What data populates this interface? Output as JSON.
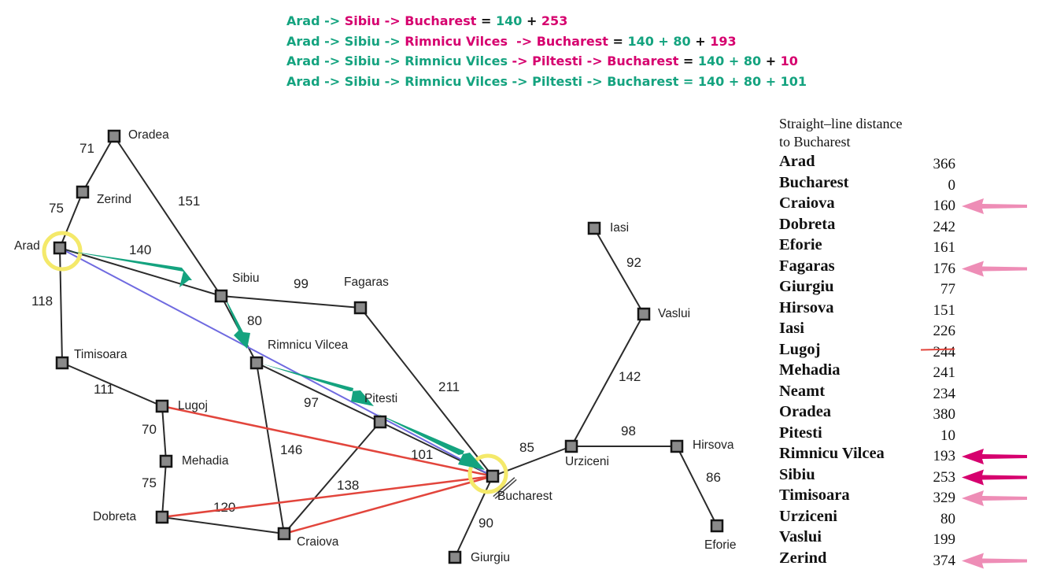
{
  "colors": {
    "teal": "#14a37f",
    "magenta": "#d6006e",
    "pink": "#ee8db6",
    "red": "#e2453c",
    "blue": "#6f6ae0",
    "yellow": "#f4e96a",
    "edge": "#2b2b2b"
  },
  "path_lines": [
    [
      {
        "t": "Arad -> ",
        "c": "teal"
      },
      {
        "t": "Sibiu -> Bucharest",
        "c": "magenta"
      },
      {
        "t": " = ",
        "c": "dark"
      },
      {
        "t": "140",
        "c": "teal"
      },
      {
        "t": " + ",
        "c": "dark"
      },
      {
        "t": "253",
        "c": "magenta"
      }
    ],
    [
      {
        "t": "Arad -> Sibiu -> ",
        "c": "teal"
      },
      {
        "t": "Rimnicu Vilces  -> Bucharest",
        "c": "magenta"
      },
      {
        "t": " = ",
        "c": "dark"
      },
      {
        "t": "140 + 80",
        "c": "teal"
      },
      {
        "t": " + ",
        "c": "dark"
      },
      {
        "t": "193",
        "c": "magenta"
      }
    ],
    [
      {
        "t": "Arad -> Sibiu -> Rimnicu Vilces ",
        "c": "teal"
      },
      {
        "t": "-> Piltesti -> Bucharest",
        "c": "magenta"
      },
      {
        "t": " = ",
        "c": "dark"
      },
      {
        "t": "140 + 80",
        "c": "teal"
      },
      {
        "t": " + ",
        "c": "dark"
      },
      {
        "t": "10",
        "c": "magenta"
      }
    ],
    [
      {
        "t": "Arad -> Sibiu -> Rimnicu Vilces -> Piltesti -> Bucharest = 140 + 80 + 101",
        "c": "teal"
      }
    ]
  ],
  "cities": [
    {
      "id": "oradea",
      "name": "Oradea"
    },
    {
      "id": "zerind",
      "name": "Zerind"
    },
    {
      "id": "arad",
      "name": "Arad"
    },
    {
      "id": "timisoara",
      "name": "Timisoara"
    },
    {
      "id": "lugoj",
      "name": "Lugoj"
    },
    {
      "id": "mehadia",
      "name": "Mehadia"
    },
    {
      "id": "dobreta",
      "name": "Dobreta"
    },
    {
      "id": "craiova",
      "name": "Craiova"
    },
    {
      "id": "sibiu",
      "name": "Sibiu"
    },
    {
      "id": "rimnicu",
      "name": "Rimnicu Vilcea"
    },
    {
      "id": "fagaras",
      "name": "Fagaras"
    },
    {
      "id": "pitesti",
      "name": "Pitesti"
    },
    {
      "id": "bucharest",
      "name": "Bucharest"
    },
    {
      "id": "giurgiu",
      "name": "Giurgiu"
    },
    {
      "id": "urziceni",
      "name": "Urziceni"
    },
    {
      "id": "hirsova",
      "name": "Hirsova"
    },
    {
      "id": "eforie",
      "name": "Eforie"
    },
    {
      "id": "vaslui",
      "name": "Vaslui"
    },
    {
      "id": "iasi",
      "name": "Iasi"
    }
  ],
  "roads": [
    {
      "from": "oradea",
      "to": "zerind",
      "km": "71"
    },
    {
      "from": "zerind",
      "to": "arad",
      "km": "75"
    },
    {
      "from": "oradea",
      "to": "sibiu",
      "km": "151"
    },
    {
      "from": "arad",
      "to": "sibiu",
      "km": "140"
    },
    {
      "from": "arad",
      "to": "timisoara",
      "km": "118"
    },
    {
      "from": "timisoara",
      "to": "lugoj",
      "km": "111"
    },
    {
      "from": "lugoj",
      "to": "mehadia",
      "km": "70"
    },
    {
      "from": "mehadia",
      "to": "dobreta",
      "km": "75"
    },
    {
      "from": "dobreta",
      "to": "craiova",
      "km": "120"
    },
    {
      "from": "sibiu",
      "to": "fagaras",
      "km": "99"
    },
    {
      "from": "sibiu",
      "to": "rimnicu",
      "km": "80"
    },
    {
      "from": "rimnicu",
      "to": "pitesti",
      "km": "97"
    },
    {
      "from": "rimnicu",
      "to": "craiova",
      "km": "146"
    },
    {
      "from": "craiova",
      "to": "pitesti",
      "km": "138"
    },
    {
      "from": "fagaras",
      "to": "bucharest",
      "km": "211"
    },
    {
      "from": "pitesti",
      "to": "bucharest",
      "km": "101"
    },
    {
      "from": "bucharest",
      "to": "giurgiu",
      "km": "90"
    },
    {
      "from": "bucharest",
      "to": "urziceni",
      "km": "85"
    },
    {
      "from": "urziceni",
      "to": "hirsova",
      "km": "98"
    },
    {
      "from": "hirsova",
      "to": "eforie",
      "km": "86"
    },
    {
      "from": "urziceni",
      "to": "vaslui",
      "km": "142"
    },
    {
      "from": "vaslui",
      "to": "iasi",
      "km": "92"
    }
  ],
  "sld_table": {
    "title_line1": "Straight–line distance",
    "title_line2": "to Bucharest",
    "rows": [
      {
        "city": "Arad",
        "dist": "366",
        "arrow": ""
      },
      {
        "city": "Bucharest",
        "dist": "0",
        "arrow": ""
      },
      {
        "city": "Craiova",
        "dist": "160",
        "arrow": "pink"
      },
      {
        "city": "Dobreta",
        "dist": "242",
        "arrow": ""
      },
      {
        "city": "Eforie",
        "dist": "161",
        "arrow": ""
      },
      {
        "city": "Fagaras",
        "dist": "176",
        "arrow": "pink"
      },
      {
        "city": "Giurgiu",
        "dist": "77",
        "arrow": ""
      },
      {
        "city": "Hirsova",
        "dist": "151",
        "arrow": ""
      },
      {
        "city": "Iasi",
        "dist": "226",
        "arrow": ""
      },
      {
        "city": "Lugoj",
        "dist": "244",
        "arrow": "underline"
      },
      {
        "city": "Mehadia",
        "dist": "241",
        "arrow": ""
      },
      {
        "city": "Neamt",
        "dist": "234",
        "arrow": ""
      },
      {
        "city": "Oradea",
        "dist": "380",
        "arrow": ""
      },
      {
        "city": "Pitesti",
        "dist": "10",
        "arrow": ""
      },
      {
        "city": "Rimnicu Vilcea",
        "dist": "193",
        "arrow": "magenta"
      },
      {
        "city": "Sibiu",
        "dist": "253",
        "arrow": "magenta"
      },
      {
        "city": "Timisoara",
        "dist": "329",
        "arrow": "pink"
      },
      {
        "city": "Urziceni",
        "dist": "80",
        "arrow": ""
      },
      {
        "city": "Vaslui",
        "dist": "199",
        "arrow": ""
      },
      {
        "city": "Zerind",
        "dist": "374",
        "arrow": "pink"
      }
    ]
  }
}
